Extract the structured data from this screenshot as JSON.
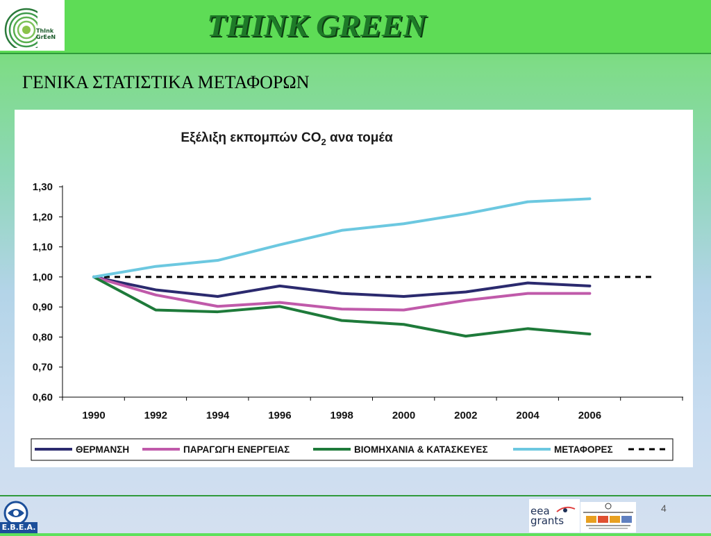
{
  "header": {
    "banner_title": "THINK GREEN",
    "logo_text_line1": "ThInk",
    "logo_text_line2": "GrEeN"
  },
  "slide": {
    "title": "ΓΕΝΙΚΑ ΣΤΑΤΙΣΤΙΚΑ ΜΕΤΑΦΟΡΩΝ",
    "page_number": "4"
  },
  "footer": {
    "ebea_label": "E.B.E.A.",
    "eea_line1": "eea",
    "eea_line2": "grants"
  },
  "chart_data": {
    "type": "line",
    "title_main": "Εξέλιξη εκπομπών CO",
    "title_sub": "2",
    "title_tail": " ανα τομέα",
    "x": [
      "1990",
      "1992",
      "1994",
      "1996",
      "1998",
      "2000",
      "2002",
      "2004",
      "2006"
    ],
    "yticks": [
      "1,30",
      "1,20",
      "1,10",
      "1,00",
      "0,90",
      "0,80",
      "0,70",
      "0,60"
    ],
    "ylim": [
      0.6,
      1.3
    ],
    "grid": false,
    "legend_position": "bottom",
    "series": [
      {
        "name": "ΘΕΡΜΑΝΣΗ",
        "color": "#2b2a6e",
        "values": [
          1.0,
          0.957,
          0.935,
          0.97,
          0.945,
          0.935,
          0.95,
          0.98,
          0.97
        ]
      },
      {
        "name": "ΠΑΡΑΓΩΓΗ ΕΝΕΡΓΕΙΑΣ",
        "color": "#c05aaa",
        "values": [
          1.0,
          0.94,
          0.902,
          0.915,
          0.893,
          0.89,
          0.922,
          0.945,
          0.945
        ]
      },
      {
        "name": "ΒΙΟΜΗΧΑΝΙΑ & ΚΑΤΑΣΚΕΥΕΣ",
        "color": "#1e7a3a",
        "values": [
          1.0,
          0.89,
          0.884,
          0.902,
          0.855,
          0.842,
          0.803,
          0.828,
          0.81
        ]
      },
      {
        "name": "ΜΕΤΑΦΟΡΕΣ",
        "color": "#6cc8e0",
        "values": [
          1.0,
          1.035,
          1.055,
          1.107,
          1.155,
          1.177,
          1.21,
          1.25,
          1.26
        ]
      }
    ],
    "reference_line": {
      "value": 1.0,
      "style": "dashed",
      "color": "#000000"
    }
  }
}
